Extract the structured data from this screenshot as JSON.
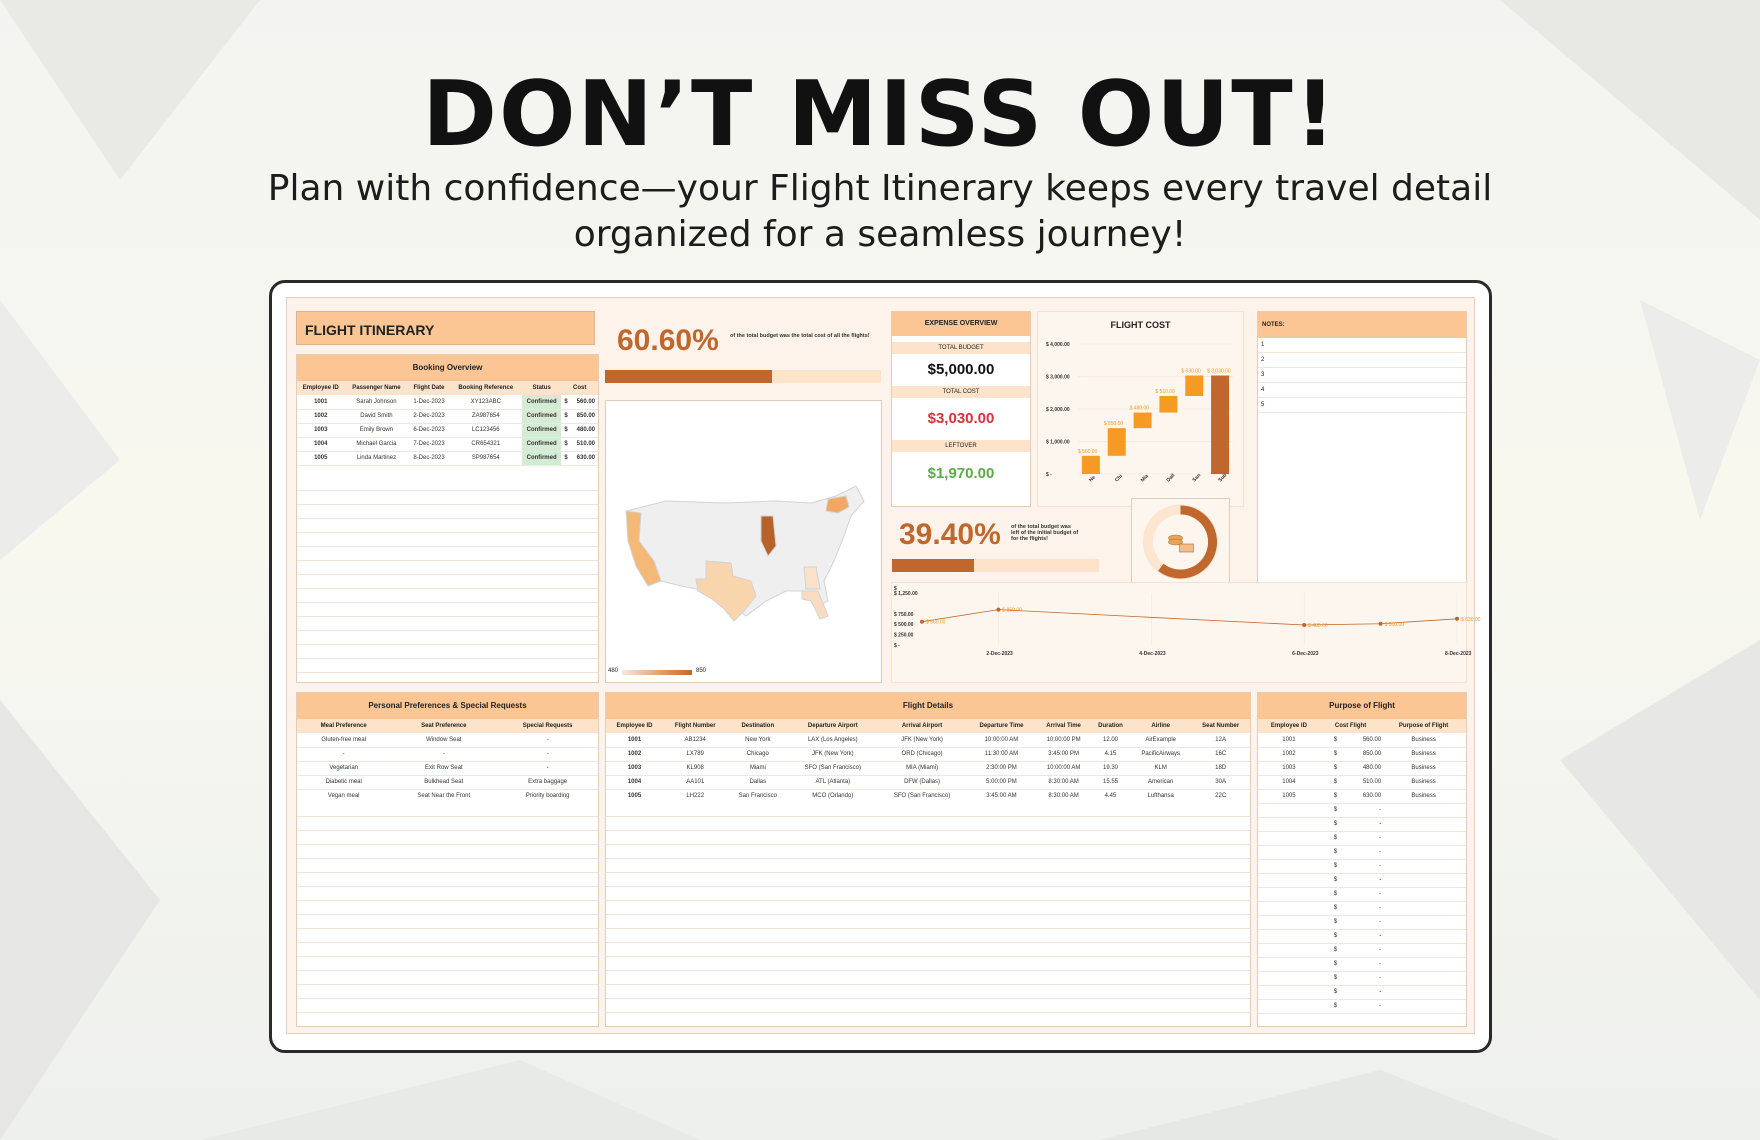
{
  "promo": {
    "headline": "DON’T MISS OUT!",
    "subline": "Plan with confidence—your Flight Itinerary keeps every travel detail organized for a seamless journey!"
  },
  "colors": {
    "accent": "#c0672d",
    "tan": "#fbc694",
    "tan_light": "#fde3c9",
    "orange": "#f59a23",
    "green": "#5aab47",
    "red": "#d6323c"
  },
  "sheet": {
    "title": "FLIGHT ITINERARY",
    "booking": {
      "heading": "Booking Overview",
      "columns": [
        "Employee ID",
        "Passenger Name",
        "Flight Date",
        "Booking Reference",
        "Status",
        "Cost"
      ],
      "rows": [
        {
          "id": "1001",
          "name": "Sarah Johnson",
          "date": "1-Dec-2023",
          "ref": "XY123ABC",
          "status": "Confirmed",
          "cur": "$",
          "cost": "560.00"
        },
        {
          "id": "1002",
          "name": "David Smith",
          "date": "2-Dec-2023",
          "ref": "ZA987654",
          "status": "Confirmed",
          "cur": "$",
          "cost": "850.00"
        },
        {
          "id": "1003",
          "name": "Emily Brown",
          "date": "6-Dec-2023",
          "ref": "LC123456",
          "status": "Confirmed",
          "cur": "$",
          "cost": "480.00"
        },
        {
          "id": "1004",
          "name": "Michael Garcia",
          "date": "7-Dec-2023",
          "ref": "CR654321",
          "status": "Confirmed",
          "cur": "$",
          "cost": "510.00"
        },
        {
          "id": "1005",
          "name": "Linda Martinez",
          "date": "8-Dec-2023",
          "ref": "SP987654",
          "status": "Confirmed",
          "cur": "$",
          "cost": "630.00"
        }
      ]
    },
    "kpi_used": {
      "value": "60.60%",
      "caption": "of the total budget was the total cost of all the flights!",
      "fraction": 0.606
    },
    "kpi_left": {
      "value": "39.40%",
      "caption": "of the total budget was left of the initial budget of for the flights!",
      "fraction": 0.394
    },
    "map_legend": {
      "min": "480",
      "max": "850"
    },
    "expense": {
      "heading": "EXPENSE OVERVIEW",
      "total_budget_label": "TOTAL BUDGET",
      "total_budget": "$5,000.00",
      "total_cost_label": "TOTAL COST",
      "total_cost": "$3,030.00",
      "leftover_label": "LEFTOVER",
      "leftover": "$1,970.00"
    },
    "notes": {
      "heading": "NOTES:",
      "lines": [
        "1",
        "2",
        "3",
        "4",
        "5"
      ]
    },
    "preferences": {
      "heading": "Personal Preferences & Special Requests",
      "columns": [
        "Meal Preference",
        "Seat Preference",
        "Special Requests"
      ],
      "rows": [
        [
          "Gluten-free meal",
          "Window Seat",
          "-"
        ],
        [
          "-",
          "-",
          "-"
        ],
        [
          "Vegetarian",
          "Exit Row Seat",
          "-"
        ],
        [
          "Diabetic meal",
          "Bulkhead Seat",
          "Extra baggage"
        ],
        [
          "Vegan meal",
          "Seat Near the Front",
          "Priority boarding"
        ]
      ]
    },
    "flights": {
      "heading": "Flight Details",
      "columns": [
        "Employee ID",
        "Flight Number",
        "Destination",
        "Departure Airport",
        "Arrival Airport",
        "Departure Time",
        "Arrival Time",
        "Duration",
        "Airline",
        "Seat Number"
      ],
      "rows": [
        [
          "1001",
          "AB1234",
          "New York",
          "LAX (Los Angeles)",
          "JFK (New York)",
          "10:00:00 AM",
          "10:00:00 PM",
          "12.00",
          "AirExample",
          "12A"
        ],
        [
          "1002",
          "LX789",
          "Chicago",
          "JFK (New York)",
          "ORD (Chicago)",
          "11:30:00 AM",
          "3:45:00 PM",
          "4.15",
          "PacificAirways",
          "16C"
        ],
        [
          "1003",
          "KL908",
          "Miami",
          "SFO (San Francisco)",
          "MIA (Miami)",
          "2:30:00 PM",
          "10:00:00 AM",
          "19.30",
          "KLM",
          "18D"
        ],
        [
          "1004",
          "AA101",
          "Dallas",
          "ATL (Atlanta)",
          "DFW (Dallas)",
          "5:00:00 PM",
          "8:30:00 AM",
          "15.55",
          "American",
          "30A"
        ],
        [
          "1005",
          "LH222",
          "San Francisco",
          "MCO (Orlando)",
          "SFO (San Francisco)",
          "3:45:00 AM",
          "8:30:00 AM",
          "4.45",
          "Lufthansa",
          "22C"
        ]
      ]
    },
    "purpose": {
      "heading": "Purpose of Flight",
      "columns": [
        "Employee ID",
        "Cost Flight",
        "Purpose of Flight"
      ],
      "rows": [
        [
          "1001",
          "$",
          "560.00",
          "Business"
        ],
        [
          "1002",
          "$",
          "850.00",
          "Business"
        ],
        [
          "1003",
          "$",
          "480.00",
          "Business"
        ],
        [
          "1004",
          "$",
          "510.00",
          "Business"
        ],
        [
          "1005",
          "$",
          "630.00",
          "Business"
        ]
      ],
      "empty_cur": "$",
      "empty_val": "-"
    }
  },
  "chart_data": [
    {
      "type": "waterfall",
      "title": "FLIGHT COST",
      "categories": [
        "Ne",
        "Chi",
        "Mia",
        "Dall",
        "San",
        "Sub"
      ],
      "values": [
        560,
        850,
        480,
        510,
        630,
        3030
      ],
      "data_labels": [
        "$ 560.00",
        "$ 850.00",
        "$ 480.00",
        "$ 510.00",
        "$ 630.00",
        "$ 3,030.00"
      ],
      "yticks": [
        "$ 4,000.00",
        "$ 3,000.00",
        "$ 2,000.00",
        "$ 1,000.00",
        "$ -"
      ],
      "ylim": [
        0,
        4000
      ]
    },
    {
      "type": "line",
      "x": [
        "1-Dec-2023",
        "2-Dec-2023",
        "6-Dec-2023",
        "7-Dec-2023",
        "8-Dec-2023"
      ],
      "xticks": [
        "2-Dec-2023",
        "4-Dec-2023",
        "6-Dec-2023",
        "8-Dec-2023"
      ],
      "values": [
        560,
        850,
        480,
        510,
        630
      ],
      "data_labels": [
        "$ 560.00",
        "$ 850.00",
        "$ 480.00",
        "$ 510.00",
        "$ 630.00"
      ],
      "yticks": [
        "$",
        "$ 1,250.00",
        "$ 750.00",
        "$ 500.00",
        "$ 250.00",
        "$ -"
      ],
      "ylim": [
        0,
        1250
      ]
    },
    {
      "type": "pie",
      "values": [
        60.6,
        39.4
      ]
    }
  ]
}
